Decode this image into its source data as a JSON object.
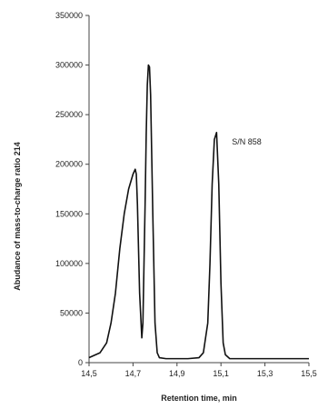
{
  "chart_data": {
    "type": "line",
    "title": "",
    "xlabel": "Retention time, min",
    "ylabel": "Abudance of mass-to-charge ratio 214",
    "xlim": [
      14.5,
      15.5
    ],
    "ylim": [
      0,
      350000
    ],
    "x_ticks": [
      "14,5",
      "14,7",
      "14,9",
      "15,1",
      "15,3",
      "15,5"
    ],
    "y_ticks": [
      "0",
      "50000",
      "100000",
      "150000",
      "200000",
      "250000",
      "300000",
      "350000"
    ],
    "grid": false,
    "legend": "none",
    "series_color": "#111111",
    "series": [
      {
        "x": [
          14.5,
          14.55,
          14.58,
          14.6,
          14.62,
          14.64,
          14.66,
          14.68,
          14.7,
          14.71,
          14.715,
          14.72,
          14.73,
          14.74,
          14.745,
          14.75,
          14.755,
          14.76,
          14.765,
          14.77,
          14.775,
          14.78,
          14.79,
          14.8,
          14.81,
          14.82,
          14.85,
          14.9,
          14.95,
          15.0,
          15.02,
          15.04,
          15.05,
          15.06,
          15.07,
          15.08,
          15.09,
          15.1,
          15.11,
          15.12,
          15.14,
          15.2,
          15.3,
          15.4,
          15.5
        ],
        "y": [
          5000,
          10000,
          20000,
          40000,
          70000,
          115000,
          150000,
          175000,
          190000,
          195000,
          190000,
          160000,
          70000,
          25000,
          40000,
          100000,
          160000,
          230000,
          280000,
          300000,
          298000,
          270000,
          150000,
          40000,
          10000,
          5000,
          4000,
          4000,
          4000,
          5000,
          10000,
          40000,
          100000,
          180000,
          225000,
          232000,
          180000,
          80000,
          20000,
          8000,
          4000,
          4000,
          4000,
          4000,
          4000
        ]
      }
    ],
    "annotations": [
      {
        "text": "S/N 858",
        "x": 15.15,
        "y": 220000
      }
    ]
  }
}
